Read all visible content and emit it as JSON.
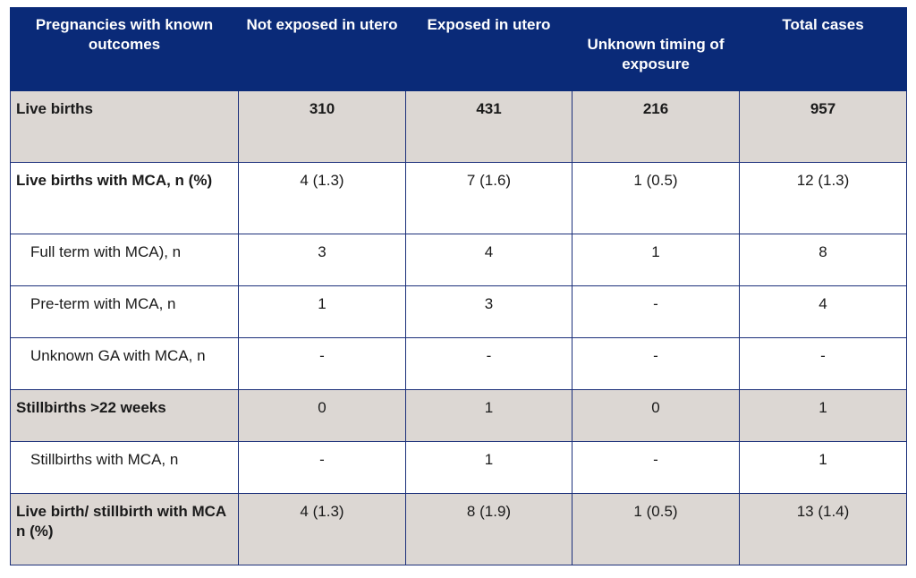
{
  "table": {
    "headers": [
      "Pregnancies with known outcomes",
      "Not exposed in utero",
      "Exposed in utero",
      "Unknown timing of exposure",
      "Total cases"
    ],
    "rows": [
      {
        "label": "Live births",
        "cells": [
          "310",
          "431",
          "216",
          "957"
        ]
      },
      {
        "label": "Live births with MCA, n (%)",
        "cells": [
          "4 (1.3)",
          "7 (1.6)",
          "1 (0.5)",
          "12 (1.3)"
        ]
      },
      {
        "label": "Full term with MCA), n",
        "cells": [
          "3",
          "4",
          "1",
          "8"
        ]
      },
      {
        "label": "Pre-term with MCA, n",
        "cells": [
          "1",
          "3",
          "-",
          "4"
        ]
      },
      {
        "label": "Unknown GA with MCA, n",
        "cells": [
          "-",
          "-",
          "-",
          "-"
        ]
      },
      {
        "label": "Stillbirths >22 weeks",
        "cells": [
          "0",
          "1",
          "0",
          "1"
        ]
      },
      {
        "label": "Stillbirths with MCA, n",
        "cells": [
          "-",
          "1",
          "-",
          "1"
        ]
      },
      {
        "label": "Live birth/ stillbirth with MCA n (%)",
        "cells": [
          "4 (1.3)",
          "8 (1.9)",
          "1 (0.5)",
          "13 (1.4)"
        ]
      }
    ]
  },
  "colors": {
    "header_bg": "#0a2a78",
    "header_text": "#ffffff",
    "shaded_row_bg": "#dcd7d3",
    "border": "#1b2f7a"
  }
}
